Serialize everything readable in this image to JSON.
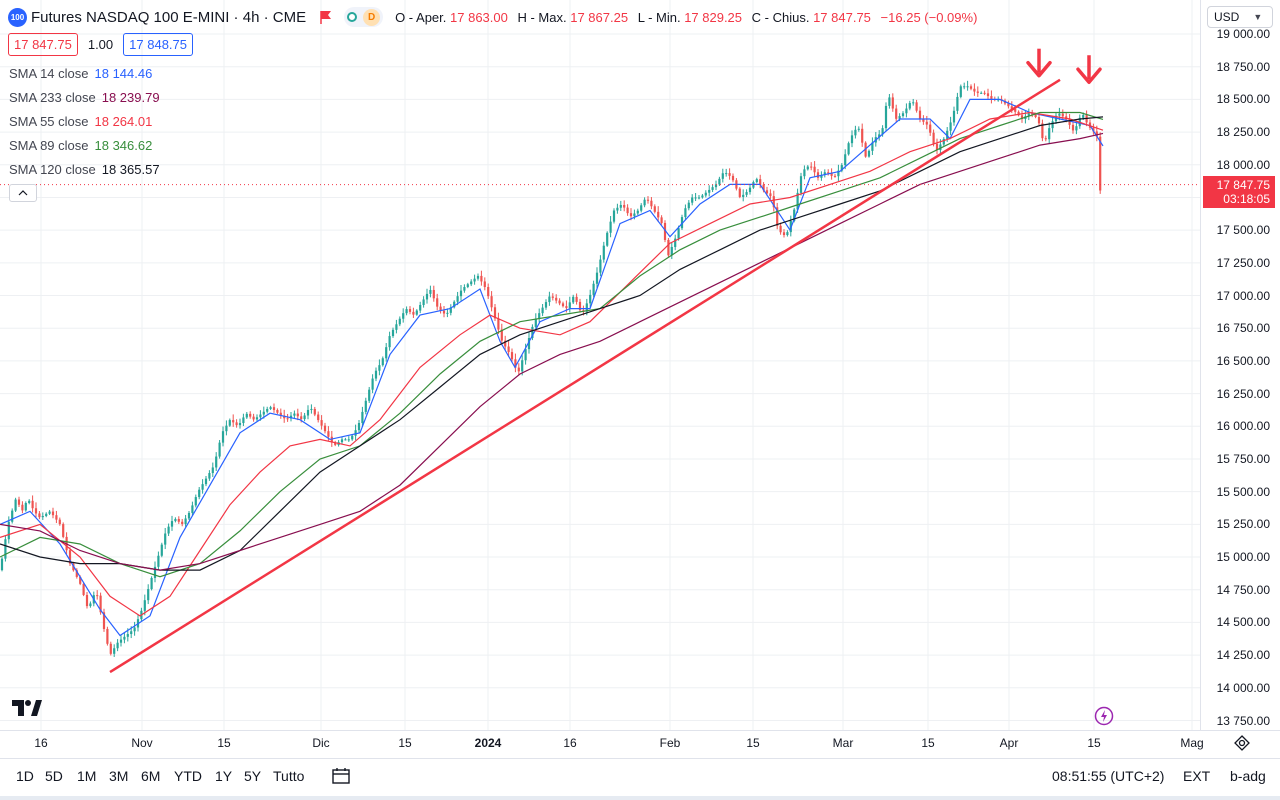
{
  "header": {
    "logo_text": "100",
    "title": "Futures NASDAQ 100 E-MINI · 4h · CME",
    "badge_d": "D",
    "ohlc": {
      "open_label": "O - Aper.",
      "open": "17 863.00",
      "high_label": "H - Max.",
      "high": "17 867.25",
      "low_label": "L - Min.",
      "low": "17 829.25",
      "close_label": "C - Chius.",
      "close": "17 847.75",
      "change": "−16.25 (−0.09%)"
    }
  },
  "price_boxes": {
    "bid": "17 847.75",
    "spread": "1.00",
    "ask": "17 848.75"
  },
  "legend": [
    {
      "name": "SMA 14 close",
      "value": "18 144.46",
      "color": "#2962ff"
    },
    {
      "name": "SMA 233 close",
      "value": "18 239.79",
      "color": "#880e4f"
    },
    {
      "name": "SMA 55 close",
      "value": "18 264.01",
      "color": "#f23645"
    },
    {
      "name": "SMA 89 close",
      "value": "18 346.62",
      "color": "#388e3c"
    },
    {
      "name": "SMA 120 close",
      "value": "18 365.57",
      "color": "#131722"
    }
  ],
  "currency": "USD",
  "last_price": {
    "price": "17 847.75",
    "countdown": "03:18:05"
  },
  "y_ticks": [
    "19 000.00",
    "18 750.00",
    "18 500.00",
    "18 250.00",
    "18 000.00",
    "17 750.00",
    "17 500.00",
    "17 250.00",
    "17 000.00",
    "16 750.00",
    "16 500.00",
    "16 250.00",
    "16 000.00",
    "15 750.00",
    "15 500.00",
    "15 250.00",
    "15 000.00",
    "14 750.00",
    "14 500.00",
    "14 250.00",
    "14 000.00",
    "13 750.00"
  ],
  "x_ticks": [
    {
      "label": "16",
      "bold": false
    },
    {
      "label": "Nov",
      "bold": false
    },
    {
      "label": "15",
      "bold": false
    },
    {
      "label": "Dic",
      "bold": false
    },
    {
      "label": "15",
      "bold": false
    },
    {
      "label": "2024",
      "bold": true
    },
    {
      "label": "16",
      "bold": false
    },
    {
      "label": "Feb",
      "bold": false
    },
    {
      "label": "15",
      "bold": false
    },
    {
      "label": "Mar",
      "bold": false
    },
    {
      "label": "15",
      "bold": false
    },
    {
      "label": "Apr",
      "bold": false
    },
    {
      "label": "15",
      "bold": false
    },
    {
      "label": "Mag",
      "bold": false
    }
  ],
  "ranges": [
    "1D",
    "5D",
    "1M",
    "3M",
    "6M",
    "YTD",
    "1Y",
    "5Y",
    "Tutto"
  ],
  "footer": {
    "time": "08:51:55 (UTC+2)",
    "ext": "EXT",
    "badj": "b-adg"
  },
  "chart_data": {
    "type": "candlestick",
    "title": "Futures NASDAQ 100 E-MINI · 4h · CME",
    "ylim": [
      13750,
      19000
    ],
    "price_path": [
      [
        0,
        14900
      ],
      [
        8,
        15250
      ],
      [
        16,
        15450
      ],
      [
        22,
        15350
      ],
      [
        28,
        15450
      ],
      [
        34,
        15350
      ],
      [
        40,
        15300
      ],
      [
        50,
        15350
      ],
      [
        60,
        15250
      ],
      [
        70,
        14950
      ],
      [
        80,
        14800
      ],
      [
        88,
        14600
      ],
      [
        96,
        14750
      ],
      [
        104,
        14450
      ],
      [
        110,
        14250
      ],
      [
        118,
        14350
      ],
      [
        126,
        14400
      ],
      [
        134,
        14450
      ],
      [
        142,
        14600
      ],
      [
        150,
        14800
      ],
      [
        158,
        15000
      ],
      [
        166,
        15200
      ],
      [
        174,
        15300
      ],
      [
        182,
        15250
      ],
      [
        190,
        15350
      ],
      [
        198,
        15500
      ],
      [
        206,
        15600
      ],
      [
        214,
        15700
      ],
      [
        222,
        15950
      ],
      [
        230,
        16050
      ],
      [
        238,
        16000
      ],
      [
        246,
        16100
      ],
      [
        254,
        16050
      ],
      [
        262,
        16100
      ],
      [
        270,
        16150
      ],
      [
        278,
        16100
      ],
      [
        286,
        16050
      ],
      [
        294,
        16100
      ],
      [
        302,
        16050
      ],
      [
        310,
        16150
      ],
      [
        318,
        16050
      ],
      [
        326,
        15950
      ],
      [
        334,
        15850
      ],
      [
        342,
        15900
      ],
      [
        350,
        15900
      ],
      [
        358,
        16000
      ],
      [
        366,
        16200
      ],
      [
        374,
        16400
      ],
      [
        382,
        16500
      ],
      [
        390,
        16700
      ],
      [
        398,
        16800
      ],
      [
        406,
        16900
      ],
      [
        414,
        16850
      ],
      [
        422,
        16950
      ],
      [
        430,
        17050
      ],
      [
        438,
        16900
      ],
      [
        446,
        16850
      ],
      [
        454,
        16950
      ],
      [
        462,
        17050
      ],
      [
        470,
        17100
      ],
      [
        478,
        17150
      ],
      [
        486,
        17050
      ],
      [
        494,
        16850
      ],
      [
        502,
        16650
      ],
      [
        510,
        16550
      ],
      [
        518,
        16400
      ],
      [
        526,
        16600
      ],
      [
        534,
        16800
      ],
      [
        542,
        16900
      ],
      [
        550,
        17000
      ],
      [
        558,
        16950
      ],
      [
        566,
        16900
      ],
      [
        574,
        17000
      ],
      [
        582,
        16850
      ],
      [
        590,
        17000
      ],
      [
        598,
        17200
      ],
      [
        606,
        17450
      ],
      [
        614,
        17650
      ],
      [
        622,
        17700
      ],
      [
        630,
        17600
      ],
      [
        638,
        17650
      ],
      [
        646,
        17750
      ],
      [
        654,
        17650
      ],
      [
        662,
        17550
      ],
      [
        668,
        17300
      ],
      [
        676,
        17450
      ],
      [
        684,
        17650
      ],
      [
        692,
        17750
      ],
      [
        700,
        17750
      ],
      [
        708,
        17800
      ],
      [
        716,
        17850
      ],
      [
        724,
        17950
      ],
      [
        732,
        17900
      ],
      [
        740,
        17750
      ],
      [
        748,
        17800
      ],
      [
        756,
        17900
      ],
      [
        764,
        17800
      ],
      [
        772,
        17750
      ],
      [
        778,
        17500
      ],
      [
        786,
        17450
      ],
      [
        794,
        17650
      ],
      [
        802,
        17950
      ],
      [
        810,
        18000
      ],
      [
        818,
        17900
      ],
      [
        826,
        17950
      ],
      [
        834,
        17900
      ],
      [
        842,
        18000
      ],
      [
        850,
        18200
      ],
      [
        858,
        18300
      ],
      [
        866,
        18050
      ],
      [
        874,
        18200
      ],
      [
        882,
        18250
      ],
      [
        888,
        18550
      ],
      [
        896,
        18350
      ],
      [
        904,
        18400
      ],
      [
        912,
        18500
      ],
      [
        920,
        18350
      ],
      [
        928,
        18300
      ],
      [
        936,
        18100
      ],
      [
        944,
        18200
      ],
      [
        952,
        18350
      ],
      [
        960,
        18600
      ],
      [
        968,
        18600
      ],
      [
        976,
        18550
      ],
      [
        984,
        18550
      ],
      [
        992,
        18500
      ],
      [
        1000,
        18500
      ],
      [
        1008,
        18450
      ],
      [
        1016,
        18400
      ],
      [
        1022,
        18350
      ],
      [
        1030,
        18400
      ],
      [
        1038,
        18350
      ],
      [
        1044,
        18150
      ],
      [
        1050,
        18300
      ],
      [
        1058,
        18400
      ],
      [
        1066,
        18350
      ],
      [
        1074,
        18250
      ],
      [
        1082,
        18400
      ],
      [
        1088,
        18300
      ],
      [
        1094,
        18250
      ],
      [
        1098,
        18200
      ],
      [
        1100,
        17800
      ],
      [
        1103,
        17848
      ]
    ],
    "series": [
      {
        "name": "SMA 14 close",
        "color": "#2962ff",
        "points": [
          [
            0,
            15250
          ],
          [
            30,
            15350
          ],
          [
            60,
            15100
          ],
          [
            100,
            14600
          ],
          [
            120,
            14400
          ],
          [
            150,
            14550
          ],
          [
            180,
            15150
          ],
          [
            210,
            15550
          ],
          [
            240,
            15950
          ],
          [
            270,
            16100
          ],
          [
            300,
            16050
          ],
          [
            330,
            15900
          ],
          [
            360,
            15950
          ],
          [
            390,
            16550
          ],
          [
            420,
            16850
          ],
          [
            450,
            16900
          ],
          [
            480,
            17050
          ],
          [
            500,
            16650
          ],
          [
            515,
            16450
          ],
          [
            540,
            16800
          ],
          [
            570,
            16900
          ],
          [
            590,
            16900
          ],
          [
            620,
            17550
          ],
          [
            650,
            17650
          ],
          [
            670,
            17450
          ],
          [
            700,
            17700
          ],
          [
            730,
            17850
          ],
          [
            760,
            17850
          ],
          [
            790,
            17500
          ],
          [
            810,
            17900
          ],
          [
            840,
            17950
          ],
          [
            870,
            18150
          ],
          [
            900,
            18350
          ],
          [
            930,
            18350
          ],
          [
            950,
            18200
          ],
          [
            970,
            18500
          ],
          [
            1000,
            18500
          ],
          [
            1030,
            18400
          ],
          [
            1060,
            18350
          ],
          [
            1090,
            18300
          ],
          [
            1103,
            18144
          ]
        ]
      },
      {
        "name": "SMA 55 close",
        "color": "#f23645",
        "points": [
          [
            0,
            15150
          ],
          [
            40,
            15250
          ],
          [
            80,
            15000
          ],
          [
            110,
            14700
          ],
          [
            140,
            14550
          ],
          [
            170,
            14700
          ],
          [
            200,
            15050
          ],
          [
            230,
            15400
          ],
          [
            260,
            15650
          ],
          [
            290,
            15850
          ],
          [
            320,
            15900
          ],
          [
            350,
            15850
          ],
          [
            380,
            16050
          ],
          [
            420,
            16450
          ],
          [
            460,
            16700
          ],
          [
            490,
            16850
          ],
          [
            520,
            16750
          ],
          [
            560,
            16700
          ],
          [
            590,
            16800
          ],
          [
            630,
            17100
          ],
          [
            670,
            17400
          ],
          [
            710,
            17550
          ],
          [
            750,
            17700
          ],
          [
            790,
            17750
          ],
          [
            830,
            17850
          ],
          [
            870,
            17950
          ],
          [
            910,
            18100
          ],
          [
            950,
            18200
          ],
          [
            990,
            18350
          ],
          [
            1030,
            18400
          ],
          [
            1070,
            18350
          ],
          [
            1103,
            18264
          ]
        ]
      },
      {
        "name": "SMA 89 close",
        "color": "#388e3c",
        "points": [
          [
            0,
            15000
          ],
          [
            40,
            15150
          ],
          [
            80,
            15100
          ],
          [
            120,
            14950
          ],
          [
            160,
            14850
          ],
          [
            200,
            14950
          ],
          [
            240,
            15200
          ],
          [
            280,
            15500
          ],
          [
            320,
            15750
          ],
          [
            360,
            15850
          ],
          [
            400,
            16100
          ],
          [
            440,
            16400
          ],
          [
            480,
            16650
          ],
          [
            520,
            16800
          ],
          [
            560,
            16850
          ],
          [
            600,
            16900
          ],
          [
            640,
            17150
          ],
          [
            680,
            17350
          ],
          [
            720,
            17500
          ],
          [
            760,
            17600
          ],
          [
            800,
            17700
          ],
          [
            840,
            17800
          ],
          [
            880,
            17900
          ],
          [
            920,
            18050
          ],
          [
            960,
            18200
          ],
          [
            1000,
            18300
          ],
          [
            1040,
            18400
          ],
          [
            1080,
            18400
          ],
          [
            1103,
            18347
          ]
        ]
      },
      {
        "name": "SMA 120 close",
        "color": "#131722",
        "points": [
          [
            0,
            15100
          ],
          [
            40,
            15000
          ],
          [
            80,
            14950
          ],
          [
            120,
            14950
          ],
          [
            160,
            14900
          ],
          [
            200,
            14900
          ],
          [
            240,
            15050
          ],
          [
            280,
            15350
          ],
          [
            320,
            15650
          ],
          [
            360,
            15850
          ],
          [
            400,
            16050
          ],
          [
            440,
            16300
          ],
          [
            480,
            16550
          ],
          [
            520,
            16700
          ],
          [
            560,
            16800
          ],
          [
            600,
            16900
          ],
          [
            640,
            17000
          ],
          [
            680,
            17200
          ],
          [
            720,
            17350
          ],
          [
            760,
            17500
          ],
          [
            800,
            17600
          ],
          [
            840,
            17700
          ],
          [
            880,
            17800
          ],
          [
            920,
            17950
          ],
          [
            960,
            18100
          ],
          [
            1000,
            18200
          ],
          [
            1040,
            18300
          ],
          [
            1080,
            18350
          ],
          [
            1103,
            18366
          ]
        ]
      },
      {
        "name": "SMA 233 close",
        "color": "#880e4f",
        "points": [
          [
            0,
            15250
          ],
          [
            40,
            15200
          ],
          [
            80,
            15050
          ],
          [
            120,
            14950
          ],
          [
            160,
            14900
          ],
          [
            200,
            14950
          ],
          [
            240,
            15050
          ],
          [
            280,
            15150
          ],
          [
            320,
            15250
          ],
          [
            360,
            15350
          ],
          [
            400,
            15550
          ],
          [
            440,
            15850
          ],
          [
            480,
            16150
          ],
          [
            520,
            16400
          ],
          [
            560,
            16550
          ],
          [
            600,
            16650
          ],
          [
            640,
            16800
          ],
          [
            680,
            16950
          ],
          [
            720,
            17100
          ],
          [
            760,
            17250
          ],
          [
            800,
            17400
          ],
          [
            840,
            17550
          ],
          [
            880,
            17700
          ],
          [
            920,
            17850
          ],
          [
            960,
            17950
          ],
          [
            1000,
            18050
          ],
          [
            1040,
            18150
          ],
          [
            1080,
            18200
          ],
          [
            1103,
            18240
          ]
        ]
      }
    ],
    "trendline": {
      "color": "#f23645",
      "from": [
        110,
        14120
      ],
      "to": [
        1060,
        18650
      ]
    },
    "arrows": [
      {
        "x": 1039,
        "y": 18750
      },
      {
        "x": 1089,
        "y": 18700
      }
    ]
  }
}
